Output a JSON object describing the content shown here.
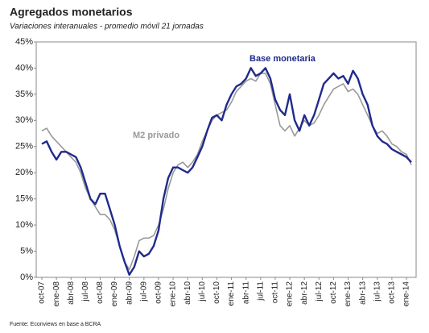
{
  "chart_data": {
    "type": "line",
    "title": "Agregados monetarios",
    "subtitle": "Variaciones interanuales - promedio móvil 21 jornadas",
    "source": "Fuente: Econviews en base a BCRA",
    "categories": [
      "oct-07",
      null,
      null,
      "ene-08",
      null,
      null,
      "abr-08",
      null,
      null,
      "jul-08",
      null,
      null,
      "oct-08",
      null,
      null,
      "ene-09",
      null,
      null,
      "abr-09",
      null,
      null,
      "jul-09",
      null,
      null,
      "oct-09",
      null,
      null,
      "ene-10",
      null,
      null,
      "abr-10",
      null,
      null,
      "jul-10",
      null,
      null,
      "oct-10",
      null,
      null,
      "ene-11",
      null,
      null,
      "abr-11",
      null,
      null,
      "jul-11",
      null,
      null,
      "oct-11",
      null,
      null,
      "ene-12",
      null,
      null,
      "abr-12",
      null,
      null,
      "jul-12",
      null,
      null,
      "oct-12",
      null,
      null,
      "ene-13",
      null,
      null,
      "abr-13",
      null,
      null,
      "jul-13",
      null,
      null,
      "oct-13",
      null,
      null,
      "ene-14",
      null
    ],
    "series": [
      {
        "name": "Base monetaria",
        "color": "#1f2a8c",
        "values": [
          25.5,
          26,
          24,
          22.5,
          24,
          24,
          23.5,
          23,
          21,
          18,
          15,
          14,
          16,
          16,
          13,
          10,
          6,
          3,
          0.5,
          2,
          5,
          4,
          4.5,
          6,
          9,
          15,
          19,
          21,
          21,
          20.5,
          20,
          21,
          23,
          25,
          28,
          30.5,
          31,
          30,
          33,
          35,
          36.5,
          37,
          38,
          40,
          38.5,
          39,
          40,
          38,
          34,
          32,
          31,
          35,
          30,
          28,
          31,
          29,
          31,
          34,
          37,
          38,
          39,
          38,
          38.5,
          37,
          39.5,
          38,
          35,
          33,
          29,
          27,
          26,
          25.5,
          24.5,
          24,
          23.5,
          23,
          22
        ]
      },
      {
        "name": "M2 privado",
        "color": "#999999",
        "values": [
          28,
          28.5,
          27,
          26,
          25,
          24,
          23,
          22,
          20,
          17,
          15,
          13.5,
          12,
          12,
          11,
          9,
          6,
          3,
          1.5,
          4,
          7,
          7.5,
          7.5,
          8,
          10,
          13,
          17,
          20,
          21.5,
          22,
          21,
          22,
          23.5,
          26,
          28,
          30,
          31,
          31.5,
          32,
          33.5,
          35.5,
          36.5,
          37.5,
          38,
          37.5,
          39,
          39,
          37,
          33,
          29,
          28,
          29,
          27,
          28.5,
          30,
          29,
          29.5,
          31,
          33,
          34.5,
          36,
          36.5,
          37,
          35.5,
          36,
          35,
          33,
          31,
          29,
          27.5,
          28,
          27,
          25.5,
          25,
          24,
          23.5,
          21.5
        ]
      }
    ],
    "ylim": [
      0,
      45
    ],
    "yticks": [
      {
        "value": 0,
        "label": "0%"
      },
      {
        "value": 5,
        "label": "5%"
      },
      {
        "value": 10,
        "label": "10%"
      },
      {
        "value": 15,
        "label": "15%"
      },
      {
        "value": 20,
        "label": "20%"
      },
      {
        "value": 25,
        "label": "25%"
      },
      {
        "value": 30,
        "label": "30%"
      },
      {
        "value": 35,
        "label": "35%"
      },
      {
        "value": 40,
        "label": "40%"
      },
      {
        "value": 45,
        "label": "45%"
      }
    ],
    "grid": false
  }
}
